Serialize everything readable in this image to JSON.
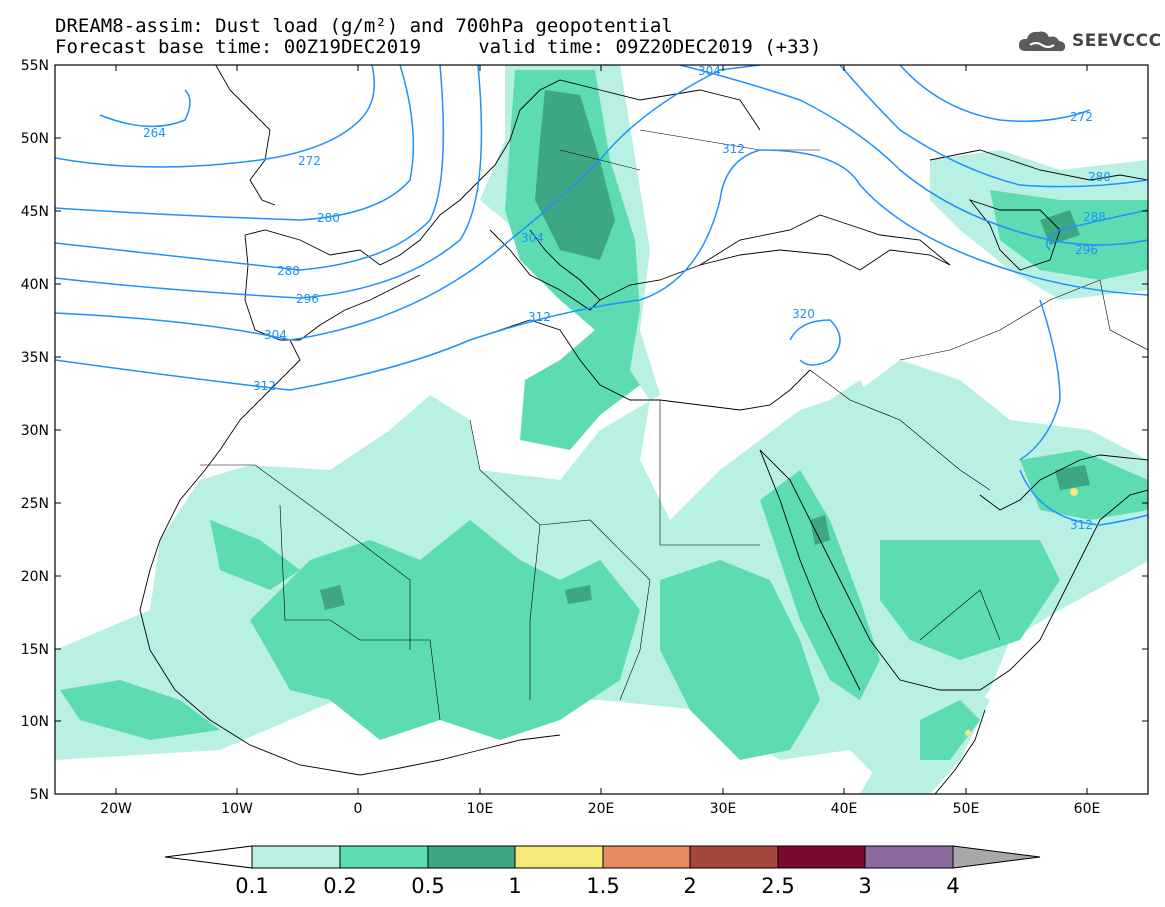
{
  "header": {
    "title_line1": "DREAM8-assim: Dust load (g/m²) and 700hPa geopotential",
    "title_line2": "Forecast base time: 00Z19DEC2019     valid time: 09Z20DEC2019 (+33)",
    "logo_text": "SEEVCCC",
    "logo_icon": "cloud-icon"
  },
  "map": {
    "lon_range": [
      -25,
      65
    ],
    "lat_range": [
      5,
      55
    ],
    "lat_labels": [
      "55N",
      "50N",
      "45N",
      "40N",
      "35N",
      "30N",
      "25N",
      "20N",
      "15N",
      "10N",
      "5N"
    ],
    "lon_labels": [
      "20W",
      "10W",
      "0",
      "10E",
      "20E",
      "30E",
      "40E",
      "50E",
      "60E"
    ],
    "contour_labels": [
      "264",
      "272",
      "280",
      "288",
      "296",
      "304",
      "304",
      "304",
      "312",
      "312",
      "312",
      "320",
      "272",
      "280",
      "288",
      "296",
      "312"
    ],
    "contour_color": "#1e90ff",
    "dust_colors": {
      "c01": "#b9f0e4",
      "c02": "#5cdcb0",
      "c05": "#3ea683",
      "c1": "#f5e97a"
    }
  },
  "colorbar": {
    "labels": [
      "0.1",
      "0.2",
      "0.5",
      "1",
      "1.5",
      "2",
      "2.5",
      "3",
      "4"
    ],
    "colors": [
      "#ffffff",
      "#b9f0e4",
      "#5cdcb0",
      "#3ea683",
      "#f5e97a",
      "#e88a5e",
      "#a5473a",
      "#7a0a2e",
      "#8c6ba0",
      "#a8a8a8"
    ]
  }
}
